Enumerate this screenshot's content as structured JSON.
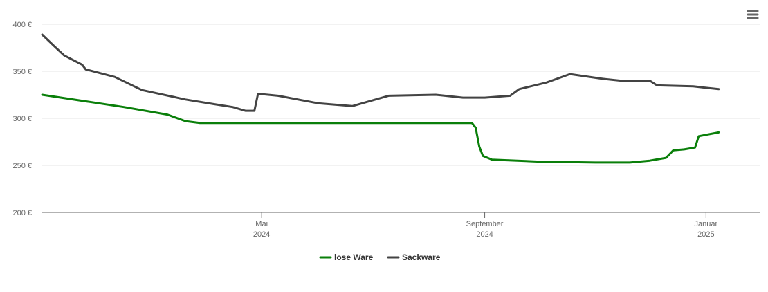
{
  "chart_data": {
    "type": "line",
    "title": "",
    "xlabel": "",
    "ylabel": "",
    "ylim": [
      200,
      400
    ],
    "x_range": [
      "2024-01-01",
      "2025-01-31"
    ],
    "y_ticks": [
      {
        "value": 200,
        "label": "200 €"
      },
      {
        "value": 250,
        "label": "250 €"
      },
      {
        "value": 300,
        "label": "300 €"
      },
      {
        "value": 350,
        "label": "350 €"
      },
      {
        "value": 400,
        "label": "400 €"
      }
    ],
    "x_ticks": [
      {
        "date": "2024-05-01",
        "month": "Mai",
        "year": "2024"
      },
      {
        "date": "2024-09-01",
        "month": "September",
        "year": "2024"
      },
      {
        "date": "2025-01-01",
        "month": "Januar",
        "year": "2025"
      }
    ],
    "grid": "horizontal",
    "legend_position": "bottom-center",
    "series": [
      {
        "name": "lose Ware",
        "color": "#0a7f0a",
        "points": [
          [
            "2024-01-01",
            325
          ],
          [
            "2024-02-15",
            312
          ],
          [
            "2024-03-10",
            304
          ],
          [
            "2024-03-20",
            297
          ],
          [
            "2024-03-28",
            295
          ],
          [
            "2024-05-01",
            295
          ],
          [
            "2024-08-25",
            295
          ],
          [
            "2024-08-27",
            290
          ],
          [
            "2024-08-29",
            270
          ],
          [
            "2024-08-31",
            260
          ],
          [
            "2024-09-05",
            256
          ],
          [
            "2024-10-01",
            254
          ],
          [
            "2024-11-01",
            253
          ],
          [
            "2024-11-20",
            253
          ],
          [
            "2024-12-01",
            255
          ],
          [
            "2024-12-10",
            258
          ],
          [
            "2024-12-14",
            266
          ],
          [
            "2024-12-20",
            267
          ],
          [
            "2024-12-26",
            269
          ],
          [
            "2024-12-28",
            281
          ],
          [
            "2025-01-08",
            285
          ]
        ]
      },
      {
        "name": "Sackware",
        "color": "#434343",
        "points": [
          [
            "2024-01-01",
            389
          ],
          [
            "2024-01-08",
            376
          ],
          [
            "2024-01-13",
            367
          ],
          [
            "2024-01-23",
            357
          ],
          [
            "2024-01-25",
            352
          ],
          [
            "2024-02-10",
            344
          ],
          [
            "2024-02-25",
            330
          ],
          [
            "2024-03-20",
            320
          ],
          [
            "2024-04-05",
            315
          ],
          [
            "2024-04-15",
            312
          ],
          [
            "2024-04-22",
            308
          ],
          [
            "2024-04-27",
            308
          ],
          [
            "2024-04-29",
            326
          ],
          [
            "2024-05-10",
            324
          ],
          [
            "2024-06-01",
            316
          ],
          [
            "2024-06-20",
            313
          ],
          [
            "2024-07-10",
            324
          ],
          [
            "2024-08-05",
            325
          ],
          [
            "2024-08-20",
            322
          ],
          [
            "2024-09-01",
            322
          ],
          [
            "2024-09-15",
            324
          ],
          [
            "2024-09-20",
            331
          ],
          [
            "2024-10-05",
            338
          ],
          [
            "2024-10-18",
            347
          ],
          [
            "2024-11-05",
            342
          ],
          [
            "2024-11-15",
            340
          ],
          [
            "2024-12-01",
            340
          ],
          [
            "2024-12-05",
            335
          ],
          [
            "2024-12-25",
            334
          ],
          [
            "2025-01-08",
            331
          ]
        ]
      }
    ]
  },
  "toolbar": {
    "menu_icon": "hamburger-menu-icon",
    "menu_color": "#666666"
  }
}
